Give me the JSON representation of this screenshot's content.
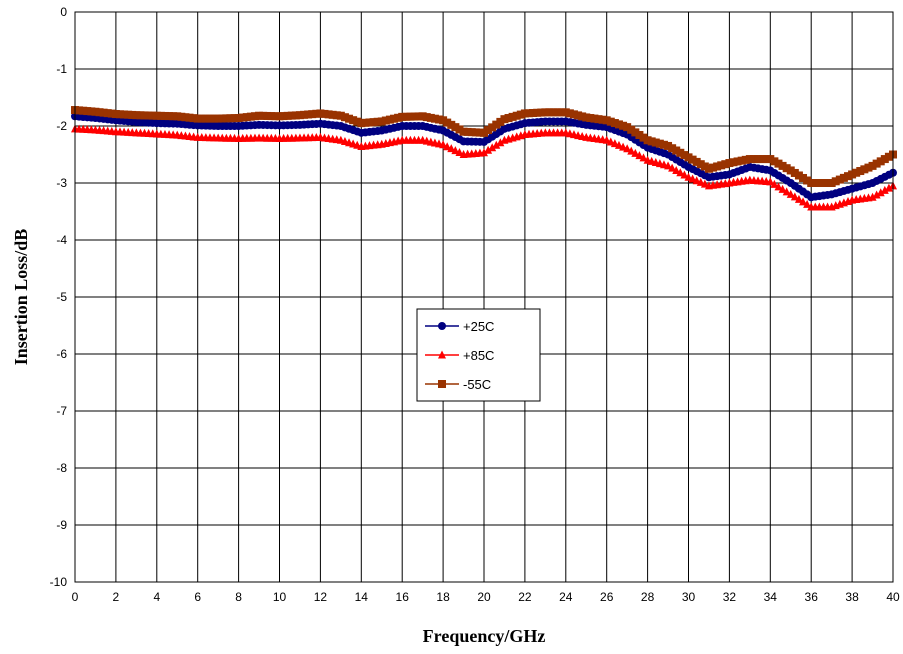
{
  "chart_data": {
    "type": "line",
    "title": "",
    "xlabel": "Frequency/GHz",
    "ylabel": "Insertion Loss/dB",
    "xlim": [
      0,
      40
    ],
    "ylim": [
      -10,
      0
    ],
    "xticks": [
      0,
      2,
      4,
      6,
      8,
      10,
      12,
      14,
      16,
      18,
      20,
      22,
      24,
      26,
      28,
      30,
      32,
      34,
      36,
      38,
      40
    ],
    "yticks": [
      0,
      -1,
      -2,
      -3,
      -4,
      -5,
      -6,
      -7,
      -8,
      -9,
      -10
    ],
    "grid": true,
    "legend_position": "center",
    "x": [
      0,
      1,
      2,
      3,
      4,
      5,
      6,
      7,
      8,
      9,
      10,
      11,
      12,
      13,
      14,
      15,
      16,
      17,
      18,
      19,
      20,
      21,
      22,
      23,
      24,
      25,
      26,
      27,
      28,
      29,
      30,
      31,
      32,
      33,
      34,
      35,
      36,
      37,
      38,
      39,
      40
    ],
    "series": [
      {
        "name": "+25C",
        "color": "#000080",
        "marker": "circle",
        "values": [
          -1.83,
          -1.86,
          -1.9,
          -1.93,
          -1.95,
          -1.96,
          -1.99,
          -2.0,
          -2.0,
          -1.98,
          -1.99,
          -1.98,
          -1.96,
          -2.0,
          -2.12,
          -2.08,
          -2.0,
          -2.0,
          -2.08,
          -2.27,
          -2.28,
          -2.05,
          -1.95,
          -1.92,
          -1.92,
          -1.98,
          -2.02,
          -2.15,
          -2.38,
          -2.5,
          -2.72,
          -2.9,
          -2.85,
          -2.72,
          -2.78,
          -3.0,
          -3.25,
          -3.2,
          -3.1,
          -3.0,
          -2.82
        ]
      },
      {
        "name": "+85C",
        "color": "#ff0000",
        "marker": "triangle",
        "values": [
          -2.05,
          -2.07,
          -2.1,
          -2.12,
          -2.14,
          -2.16,
          -2.2,
          -2.21,
          -2.22,
          -2.21,
          -2.22,
          -2.21,
          -2.2,
          -2.25,
          -2.36,
          -2.32,
          -2.25,
          -2.25,
          -2.33,
          -2.5,
          -2.47,
          -2.25,
          -2.15,
          -2.12,
          -2.12,
          -2.2,
          -2.25,
          -2.4,
          -2.6,
          -2.7,
          -2.9,
          -3.05,
          -3.0,
          -2.95,
          -2.98,
          -3.2,
          -3.42,
          -3.42,
          -3.3,
          -3.25,
          -3.05
        ]
      },
      {
        "name": "-55C",
        "color": "#993300",
        "marker": "square",
        "values": [
          -1.72,
          -1.75,
          -1.79,
          -1.81,
          -1.82,
          -1.83,
          -1.87,
          -1.87,
          -1.86,
          -1.82,
          -1.83,
          -1.81,
          -1.78,
          -1.82,
          -1.95,
          -1.92,
          -1.84,
          -1.83,
          -1.9,
          -2.1,
          -2.12,
          -1.88,
          -1.78,
          -1.76,
          -1.76,
          -1.85,
          -1.9,
          -2.02,
          -2.25,
          -2.35,
          -2.55,
          -2.75,
          -2.65,
          -2.58,
          -2.58,
          -2.78,
          -3.0,
          -3.0,
          -2.85,
          -2.7,
          -2.5
        ]
      }
    ]
  }
}
